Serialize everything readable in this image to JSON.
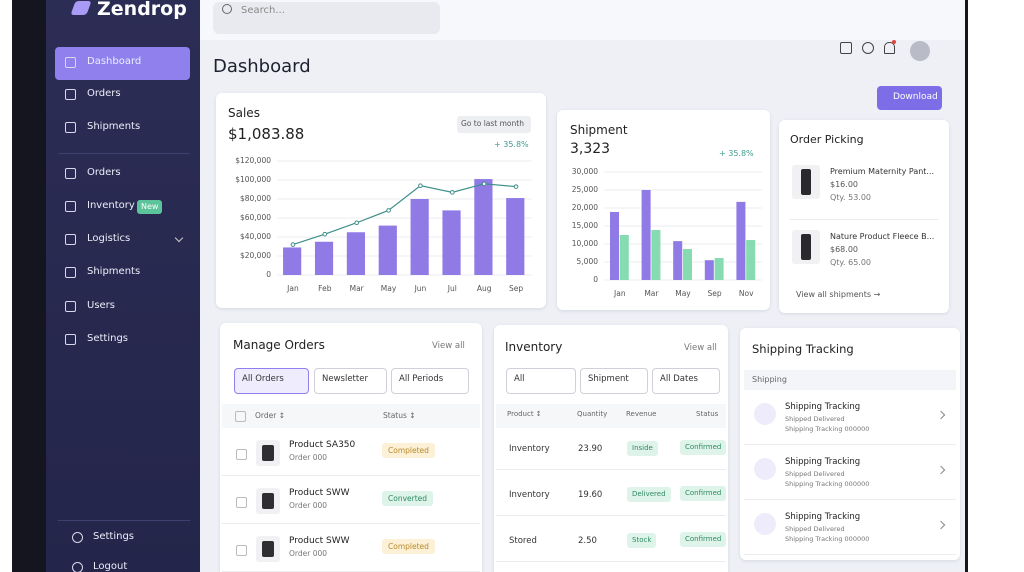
{
  "brand": "Zendrop",
  "search": "Search...",
  "nav": [
    {
      "label": "Dashboard"
    },
    {
      "label": "Orders"
    },
    {
      "label": "Shipments"
    },
    {
      "label": "Orders"
    },
    {
      "label": "Inventory",
      "badge": "New"
    },
    {
      "label": "Logistics"
    },
    {
      "label": "Shipments"
    },
    {
      "label": "Users"
    },
    {
      "label": "Settings"
    }
  ],
  "nav_bottom": [
    "Settings",
    "Logout"
  ],
  "page_title": "Dashboard",
  "download": "Download",
  "sales": {
    "title": "Sales",
    "total": "$1,083.88",
    "filter": "Go to last month",
    "change": "+ 35.8%",
    "chart": {
      "type": "bar",
      "categories": [
        "Jan",
        "Feb",
        "Mar",
        "May",
        "Jun",
        "Jul",
        "Aug",
        "Sep"
      ],
      "series": [
        {
          "type": "bar",
          "color": "#8f7ae6",
          "values": [
            29000,
            35000,
            45000,
            52000,
            80000,
            68000,
            101000,
            81000
          ]
        },
        {
          "type": "line",
          "color": "#3f8f8a",
          "values": [
            32000,
            43000,
            55000,
            68000,
            94000,
            87000,
            96000,
            93000
          ]
        }
      ],
      "ylim": [
        0,
        120000
      ],
      "yticks": [
        0,
        {
          "value": 20000,
          "label": "$20,000"
        },
        {
          "value": 40000,
          "label": "$40,000"
        },
        {
          "value": 60000,
          "label": "$60,000"
        },
        {
          "value": 80000,
          "label": "$80,000"
        },
        {
          "value": 100000,
          "label": "$100,000"
        },
        {
          "value": 120000,
          "label": "$120,000"
        }
      ],
      "grid": true
    }
  },
  "shipment": {
    "title": "Shipment",
    "total": "3,323",
    "change": "+ 35.8%",
    "chart": {
      "type": "bar",
      "categories": [
        "Jan",
        "Mar",
        "May",
        "Sep",
        "Nov"
      ],
      "series": [
        {
          "type": "bar",
          "color": "#8f7ae6",
          "values": [
            18900,
            25000,
            10800,
            5500,
            21700
          ]
        },
        {
          "type": "bar",
          "color": "#86dcb0",
          "values": [
            12500,
            13900,
            8600,
            6100,
            11100
          ]
        }
      ],
      "ylim": [
        0,
        30000
      ],
      "yticks": [
        0,
        {
          "value": 5000,
          "label": "5,000"
        },
        {
          "value": 10000,
          "label": "10,000"
        },
        {
          "value": 15000,
          "label": "15,000"
        },
        {
          "value": 20000,
          "label": "20,000"
        },
        {
          "value": 25000,
          "label": "25,000"
        },
        {
          "value": 30000,
          "label": "30,000"
        }
      ],
      "grid": true
    }
  },
  "order_picking": {
    "title": "Order Picking",
    "items": [
      {
        "name": "Premium Maternity Pant...",
        "price": "$16.00",
        "qty": "Qty. 53.00"
      },
      {
        "name": "Nature Product Fleece B...",
        "price": "$68.00",
        "qty": "Qty. 65.00"
      }
    ],
    "link": "View all shipments →"
  },
  "manage_orders": {
    "title": "Manage Orders",
    "link": "View all",
    "filters": [
      "All Orders",
      "Newsletter",
      "All Periods"
    ],
    "columns": [
      "Order ↕",
      "Status ↕"
    ],
    "rows": [
      {
        "name": "Product SA350",
        "sub": "Order 000",
        "status": "Completed"
      },
      {
        "name": "Product SWW",
        "sub": "Order 000",
        "status": "Converted"
      },
      {
        "name": "Product SWW",
        "sub": "Order 000",
        "status": "Completed"
      }
    ]
  },
  "inventory": {
    "title": "Inventory",
    "link": "View all",
    "filters": [
      "All",
      "Shipment",
      "All Dates"
    ],
    "columns": [
      "Product ↕",
      "Quantity",
      "Revenue",
      "Status"
    ],
    "rows": [
      [
        "Inventory",
        "23.90",
        "Inside",
        "Confirmed"
      ],
      [
        "Inventory",
        "19.60",
        "Delivered",
        "Confirmed"
      ],
      [
        "Stored",
        "2.50",
        "Stock",
        "Confirmed"
      ]
    ]
  },
  "shipping_tracking": {
    "title": "Shipping Tracking",
    "subheader": "Shipping",
    "items": [
      {
        "title": "Shipping Tracking",
        "line1": "Shipped Delivered",
        "line2": "Shipping Tracking 000000"
      },
      {
        "title": "Shipping Tracking",
        "line1": "Shipped Delivered",
        "line2": "Shipping Tracking 000000"
      },
      {
        "title": "Shipping Tracking",
        "line1": "Shipped Delivered",
        "line2": "Shipping Tracking 000000"
      }
    ]
  }
}
